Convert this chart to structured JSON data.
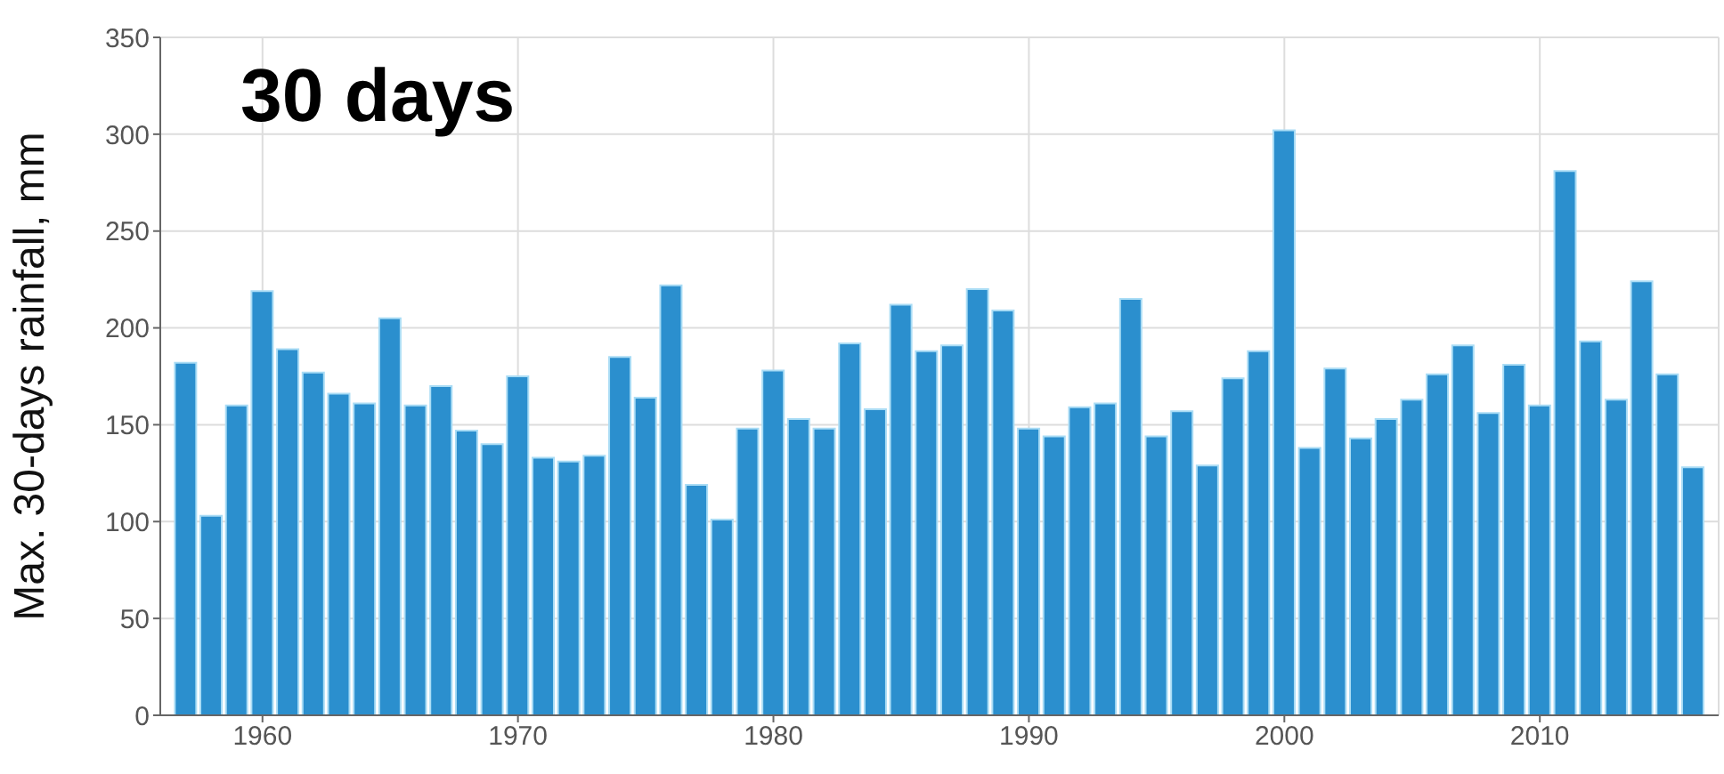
{
  "chart_data": {
    "type": "bar",
    "ylabel": "Max. 30-days rainfall, mm",
    "annotations": [
      "30 days"
    ],
    "x": [
      1957,
      1958,
      1959,
      1960,
      1961,
      1962,
      1963,
      1964,
      1965,
      1966,
      1967,
      1968,
      1969,
      1970,
      1971,
      1972,
      1973,
      1974,
      1975,
      1976,
      1977,
      1978,
      1979,
      1980,
      1981,
      1982,
      1983,
      1984,
      1985,
      1986,
      1987,
      1988,
      1989,
      1990,
      1991,
      1992,
      1993,
      1994,
      1995,
      1996,
      1997,
      1998,
      1999,
      2000,
      2001,
      2002,
      2003,
      2004,
      2005,
      2006,
      2007,
      2008,
      2009,
      2010,
      2011,
      2012,
      2013,
      2014,
      2015,
      2016
    ],
    "values": [
      182,
      103,
      160,
      219,
      189,
      177,
      166,
      161,
      205,
      160,
      170,
      147,
      140,
      175,
      133,
      131,
      134,
      185,
      164,
      222,
      119,
      101,
      148,
      178,
      153,
      148,
      192,
      158,
      212,
      188,
      191,
      220,
      209,
      148,
      144,
      159,
      161,
      215,
      144,
      157,
      129,
      174,
      188,
      302,
      138,
      179,
      143,
      153,
      163,
      176,
      191,
      156,
      181,
      160,
      281,
      193,
      163,
      224,
      176,
      128
    ],
    "color": "#2b8fce",
    "xlim": [
      1956,
      2017
    ],
    "xticks": [
      1960,
      1970,
      1980,
      1990,
      2000,
      2010
    ],
    "ylim": [
      0,
      350
    ],
    "yticks": [
      0,
      50,
      100,
      150,
      200,
      250,
      300,
      350
    ],
    "grid": true
  }
}
